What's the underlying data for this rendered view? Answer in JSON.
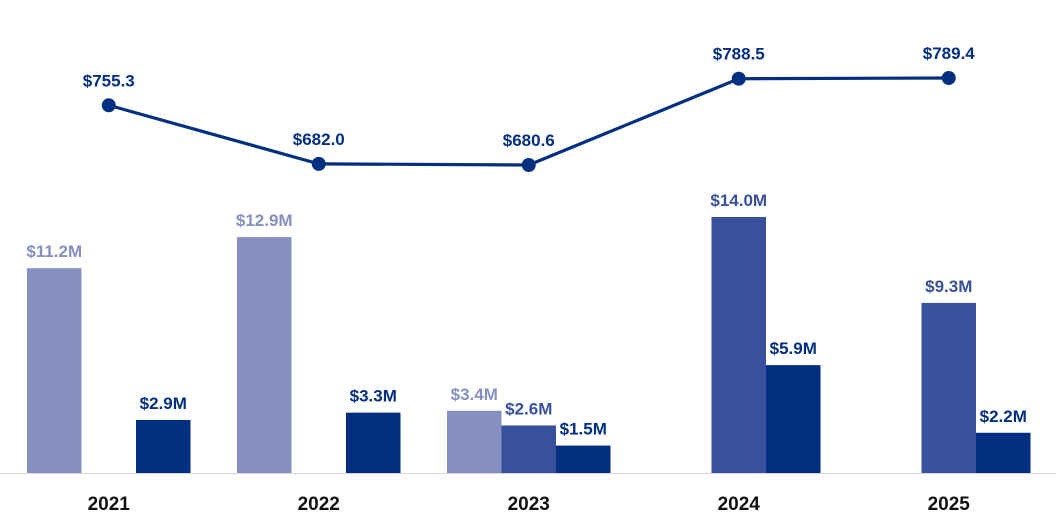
{
  "chart_data": {
    "type": "bar",
    "title": "",
    "xlabel": "",
    "ylabel": "",
    "categories": [
      "2021",
      "2022",
      "2023",
      "2024",
      "2025"
    ],
    "series": [
      {
        "name": "series-light",
        "color": "#8590c1",
        "values": [
          11.2,
          12.9,
          3.4,
          null,
          null
        ],
        "labels": [
          "$11.2M",
          "$12.9M",
          "$3.4M",
          null,
          null
        ]
      },
      {
        "name": "series-medium",
        "color": "#38519c",
        "values": [
          null,
          null,
          2.6,
          14.0,
          9.3
        ],
        "labels": [
          null,
          null,
          "$2.6M",
          "$14.0M",
          "$9.3M"
        ]
      },
      {
        "name": "series-dark",
        "color": "#032f80",
        "values": [
          2.9,
          3.3,
          1.5,
          5.9,
          2.2
        ],
        "labels": [
          "$2.9M",
          "$3.3M",
          "$1.5M",
          "$5.9M",
          "$2.2M"
        ]
      }
    ],
    "bar_ylim": [
      0,
      14.0
    ],
    "line": {
      "name": "line-series",
      "color": "#032f80",
      "values": [
        755.3,
        682.0,
        680.6,
        788.5,
        789.4
      ],
      "labels": [
        "$755.3",
        "$682.0",
        "$680.6",
        "$788.5",
        "$789.4"
      ],
      "ylim": [
        680.6,
        789.4
      ]
    }
  }
}
